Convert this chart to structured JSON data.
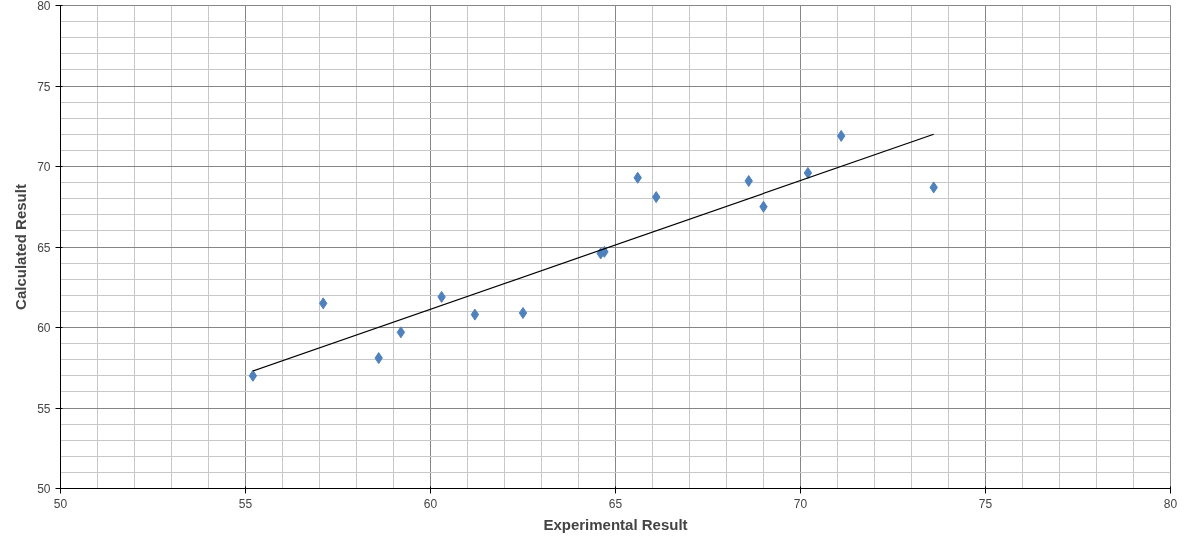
{
  "chart_data": {
    "type": "scatter",
    "xlabel": "Experimental Result",
    "ylabel": "Calculated Result",
    "xlim": [
      50,
      80
    ],
    "ylim": [
      50,
      80
    ],
    "xticks": [
      50,
      55,
      60,
      65,
      70,
      75,
      80
    ],
    "yticks": [
      50,
      55,
      60,
      65,
      70,
      75,
      80
    ],
    "grid": true,
    "series": [
      {
        "marker": "diamond",
        "color": "#4f81bd",
        "x": [
          55.2,
          57.1,
          58.6,
          59.2,
          60.3,
          61.2,
          62.5,
          64.6,
          64.7,
          65.6,
          66.1,
          68.6,
          69.0,
          70.2,
          71.1,
          73.6
        ],
        "values": [
          57.0,
          61.5,
          58.1,
          59.7,
          61.9,
          60.8,
          60.9,
          64.6,
          64.7,
          69.3,
          68.1,
          69.1,
          67.5,
          69.6,
          71.9,
          68.7
        ]
      },
      {
        "type": "line",
        "color": "#000000",
        "x": [
          55.2,
          73.6
        ],
        "values": [
          57.3,
          72.0
        ]
      }
    ]
  }
}
